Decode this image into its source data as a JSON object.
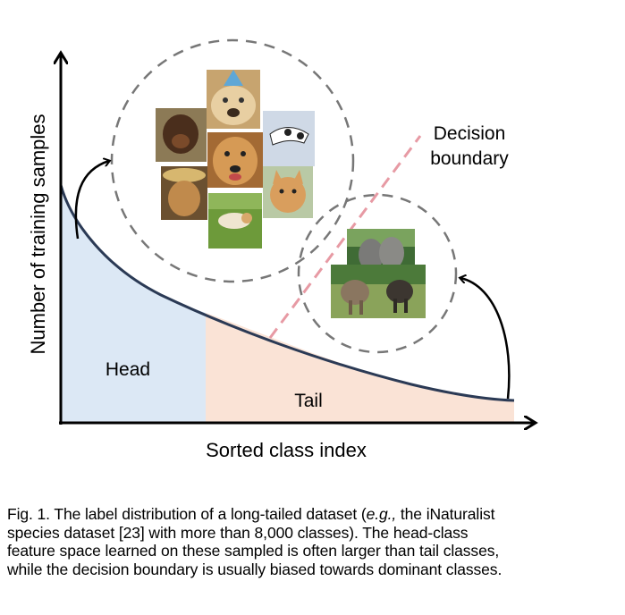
{
  "figure": {
    "axis_y_label": "Number of training samples",
    "axis_x_label": "Sorted class index",
    "head_label": "Head",
    "tail_label": "Tail",
    "boundary_label_line1": "Decision",
    "boundary_label_line2": "boundary",
    "images": {
      "head": [
        "dog with party hat",
        "dog in grass",
        "running dog",
        "dog portrait",
        "dog with hat",
        "dog close-up",
        "cat",
        "puppy lying in grass"
      ],
      "tail": [
        "elephants in forest",
        "elephants walking"
      ]
    },
    "colors": {
      "head_fill": "#dce8f5",
      "tail_fill": "#fae3d6",
      "curve": "#2b3a55",
      "boundary": "#e79aa4",
      "circle": "#777777"
    }
  },
  "caption": {
    "prefix": "Fig. 1. The label distribution of a long-tailed dataset (",
    "italic_eg": "e.g.,",
    "line1_rest": " the iNaturalist",
    "line2": "species dataset [23] with more than 8,000 classes). The head-class",
    "line3": "feature space learned on these sampled is often larger than tail classes,",
    "line4": "while the decision boundary is usually biased towards dominant classes."
  }
}
